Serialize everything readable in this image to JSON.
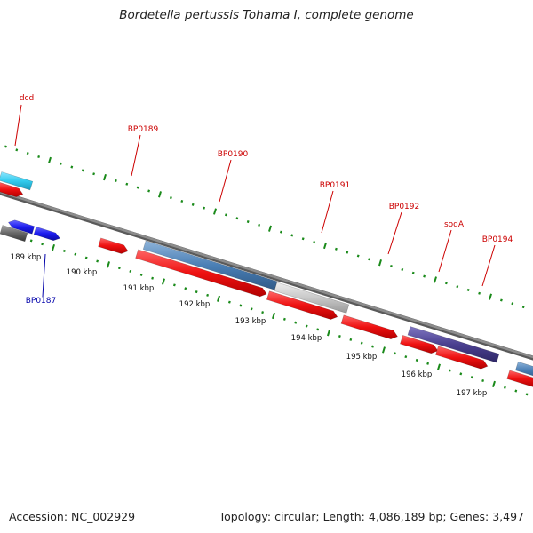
{
  "title": "Bordetella pertussis Tohama I, complete genome",
  "footer": {
    "accession": "Accession: NC_002929",
    "summary": "Topology: circular; Length: 4,086,189 bp; Genes: 3,497"
  },
  "colors": {
    "backbone": "#8c8c8c",
    "tick": "#1a8a1a",
    "label_red": "#cc0000",
    "label_blue": "#0000aa",
    "feature_red": "#ee1111",
    "feature_steel": "#4a7fb5",
    "feature_cyan": "#33ccee",
    "feature_light_gray": "#c8c8c8",
    "feature_slate": "#4a3f8f",
    "feature_blue": "#1b1bee",
    "feature_dark_gray": "#666666"
  },
  "scale_labels": [
    "189 kbp",
    "190 kbp",
    "191 kbp",
    "192 kbp",
    "193 kbp",
    "194 kbp",
    "195 kbp",
    "196 kbp",
    "197 kbp"
  ],
  "gene_labels": [
    {
      "text": "dcd",
      "color": "red"
    },
    {
      "text": "BP0189",
      "color": "red"
    },
    {
      "text": "BP0190",
      "color": "red"
    },
    {
      "text": "BP0191",
      "color": "red"
    },
    {
      "text": "BP0192",
      "color": "red"
    },
    {
      "text": "sodA",
      "color": "red"
    },
    {
      "text": "BP0194",
      "color": "red"
    },
    {
      "text": "BP0187",
      "color": "blue"
    }
  ]
}
